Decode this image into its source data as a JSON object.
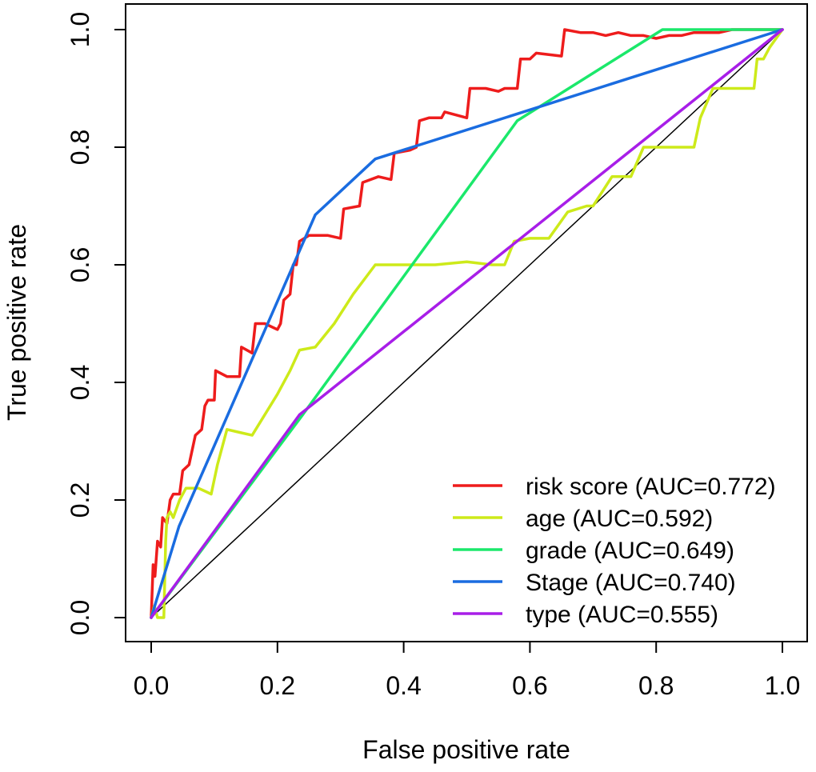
{
  "chart_data": {
    "type": "line",
    "title": "",
    "xlabel": "False positive rate",
    "ylabel": "True positive rate",
    "xlim": [
      0,
      1
    ],
    "ylim": [
      0,
      1
    ],
    "x_ticks": [
      "0.0",
      "0.2",
      "0.4",
      "0.6",
      "0.8",
      "1.0"
    ],
    "y_ticks": [
      "0.0",
      "0.2",
      "0.4",
      "0.6",
      "0.8",
      "1.0"
    ],
    "grid": false,
    "legend_position": "bottom-right",
    "reference_line": {
      "x": [
        0,
        1
      ],
      "y": [
        0,
        1
      ],
      "color": "#000000"
    },
    "series": [
      {
        "name": "risk score (AUC=0.772)",
        "color": "#ee1c1c",
        "points": [
          [
            0,
            0
          ],
          [
            0.003,
            0.09
          ],
          [
            0.006,
            0.07
          ],
          [
            0.008,
            0.1
          ],
          [
            0.01,
            0.13
          ],
          [
            0.015,
            0.12
          ],
          [
            0.018,
            0.17
          ],
          [
            0.025,
            0.16
          ],
          [
            0.03,
            0.2
          ],
          [
            0.035,
            0.21
          ],
          [
            0.045,
            0.21
          ],
          [
            0.05,
            0.25
          ],
          [
            0.06,
            0.26
          ],
          [
            0.07,
            0.31
          ],
          [
            0.08,
            0.32
          ],
          [
            0.085,
            0.36
          ],
          [
            0.09,
            0.37
          ],
          [
            0.1,
            0.37
          ],
          [
            0.102,
            0.42
          ],
          [
            0.12,
            0.41
          ],
          [
            0.14,
            0.41
          ],
          [
            0.143,
            0.46
          ],
          [
            0.16,
            0.45
          ],
          [
            0.165,
            0.5
          ],
          [
            0.18,
            0.5
          ],
          [
            0.2,
            0.49
          ],
          [
            0.205,
            0.5
          ],
          [
            0.21,
            0.54
          ],
          [
            0.22,
            0.55
          ],
          [
            0.225,
            0.6
          ],
          [
            0.23,
            0.6
          ],
          [
            0.235,
            0.64
          ],
          [
            0.25,
            0.65
          ],
          [
            0.28,
            0.65
          ],
          [
            0.3,
            0.645
          ],
          [
            0.305,
            0.695
          ],
          [
            0.33,
            0.7
          ],
          [
            0.335,
            0.74
          ],
          [
            0.36,
            0.75
          ],
          [
            0.38,
            0.745
          ],
          [
            0.385,
            0.79
          ],
          [
            0.41,
            0.795
          ],
          [
            0.42,
            0.8
          ],
          [
            0.425,
            0.845
          ],
          [
            0.44,
            0.85
          ],
          [
            0.46,
            0.85
          ],
          [
            0.465,
            0.86
          ],
          [
            0.5,
            0.85
          ],
          [
            0.505,
            0.9
          ],
          [
            0.53,
            0.9
          ],
          [
            0.55,
            0.895
          ],
          [
            0.56,
            0.9
          ],
          [
            0.58,
            0.9
          ],
          [
            0.585,
            0.95
          ],
          [
            0.6,
            0.95
          ],
          [
            0.61,
            0.96
          ],
          [
            0.65,
            0.955
          ],
          [
            0.655,
            1.0
          ],
          [
            0.68,
            0.995
          ],
          [
            0.7,
            0.995
          ],
          [
            0.72,
            0.99
          ],
          [
            0.74,
            0.995
          ],
          [
            0.76,
            0.99
          ],
          [
            0.78,
            0.99
          ],
          [
            0.8,
            0.985
          ],
          [
            0.82,
            0.99
          ],
          [
            0.84,
            0.99
          ],
          [
            0.86,
            0.995
          ],
          [
            0.88,
            0.995
          ],
          [
            0.9,
            0.995
          ],
          [
            0.92,
            1.0
          ],
          [
            0.95,
            1.0
          ],
          [
            1,
            1.0
          ]
        ]
      },
      {
        "name": "age (AUC=0.592)",
        "color": "#cdea1a",
        "points": [
          [
            0,
            0
          ],
          [
            0.005,
            0.02
          ],
          [
            0.01,
            0.0
          ],
          [
            0.02,
            0.0
          ],
          [
            0.023,
            0.13
          ],
          [
            0.025,
            0.17
          ],
          [
            0.03,
            0.18
          ],
          [
            0.035,
            0.17
          ],
          [
            0.045,
            0.2
          ],
          [
            0.055,
            0.22
          ],
          [
            0.065,
            0.22
          ],
          [
            0.075,
            0.22
          ],
          [
            0.095,
            0.21
          ],
          [
            0.105,
            0.26
          ],
          [
            0.12,
            0.32
          ],
          [
            0.14,
            0.315
          ],
          [
            0.16,
            0.31
          ],
          [
            0.2,
            0.38
          ],
          [
            0.22,
            0.42
          ],
          [
            0.235,
            0.455
          ],
          [
            0.26,
            0.46
          ],
          [
            0.29,
            0.5
          ],
          [
            0.32,
            0.55
          ],
          [
            0.355,
            0.6
          ],
          [
            0.4,
            0.6
          ],
          [
            0.45,
            0.6
          ],
          [
            0.5,
            0.605
          ],
          [
            0.54,
            0.6
          ],
          [
            0.56,
            0.6
          ],
          [
            0.575,
            0.64
          ],
          [
            0.6,
            0.645
          ],
          [
            0.63,
            0.645
          ],
          [
            0.66,
            0.69
          ],
          [
            0.69,
            0.7
          ],
          [
            0.7,
            0.7
          ],
          [
            0.73,
            0.75
          ],
          [
            0.76,
            0.75
          ],
          [
            0.78,
            0.8
          ],
          [
            0.8,
            0.8
          ],
          [
            0.82,
            0.8
          ],
          [
            0.86,
            0.8
          ],
          [
            0.87,
            0.85
          ],
          [
            0.89,
            0.9
          ],
          [
            0.9,
            0.9
          ],
          [
            0.93,
            0.9
          ],
          [
            0.955,
            0.9
          ],
          [
            0.96,
            0.95
          ],
          [
            0.97,
            0.95
          ],
          [
            0.98,
            0.97
          ],
          [
            1,
            1.0
          ]
        ]
      },
      {
        "name": "grade (AUC=0.649)",
        "color": "#1be86b",
        "points": [
          [
            0,
            0
          ],
          [
            0.24,
            0.345
          ],
          [
            0.58,
            0.845
          ],
          [
            0.81,
            1.0
          ],
          [
            1,
            1.0
          ]
        ]
      },
      {
        "name": "Stage (AUC=0.740)",
        "color": "#1a6ce0",
        "points": [
          [
            0,
            0
          ],
          [
            0.044,
            0.155
          ],
          [
            0.26,
            0.685
          ],
          [
            0.355,
            0.78
          ],
          [
            1,
            1.0
          ]
        ]
      },
      {
        "name": "type (AUC=0.555)",
        "color": "#a81ee8",
        "points": [
          [
            0,
            0
          ],
          [
            0.235,
            0.345
          ],
          [
            1,
            1.0
          ]
        ]
      }
    ]
  }
}
